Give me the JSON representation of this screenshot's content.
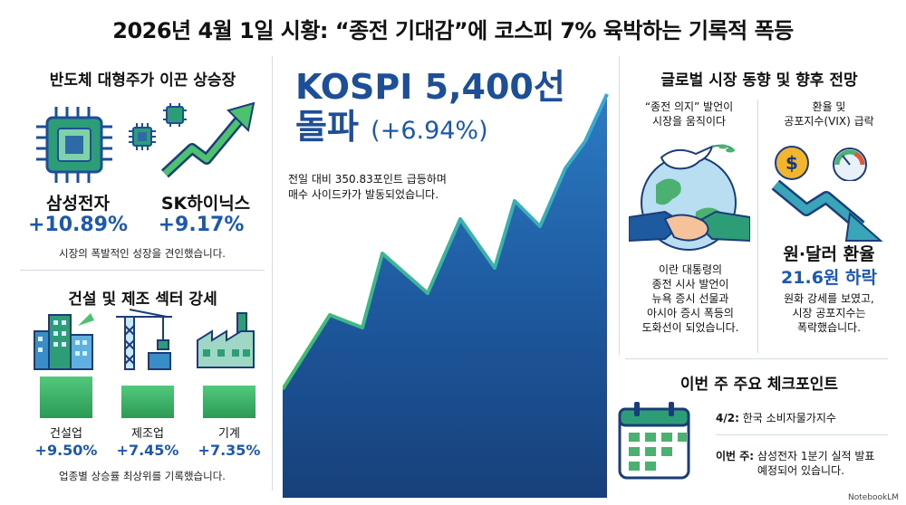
{
  "title": "2026년 4월 1일 시황: “종전 기대감”에 코스피 7% 육박하는 기록적 폭등",
  "semis": {
    "heading": "반도체 대형주가 이끈 상승장",
    "companies": [
      {
        "name": "삼성전자",
        "change": "+10.89%"
      },
      {
        "name": "SK하이닉스",
        "change": "+9.17%"
      }
    ],
    "caption": "시장의 폭발적인 성장을 견인했습니다."
  },
  "sectors": {
    "heading": "건설 및 제조 섹터 강세",
    "items": [
      {
        "name": "건설업",
        "change": "+9.50%",
        "value": 9.5
      },
      {
        "name": "제조업",
        "change": "+7.45%",
        "value": 7.45
      },
      {
        "name": "기계",
        "change": "+7.35%",
        "value": 7.35
      }
    ],
    "caption": "업종별 상승률 최상위를 기록했습니다."
  },
  "kospi": {
    "headline_line1": "KOSPI 5,400선",
    "headline_line2": "돌파",
    "change": "(+6.94%)",
    "desc_line1": "전일 대비 350.83포인트 급등하며",
    "desc_line2": "매수 사이드카가 발동되었습니다."
  },
  "global": {
    "heading": "글로벌 시장 동향 및 향후 전망",
    "peace_caption": [
      "“종전 의지” 발언이",
      "시장을 움직이다"
    ],
    "fx_caption": [
      "환율 및",
      "공포지수(VIX) 급락"
    ],
    "peace_body": [
      "이란 대통령의",
      "종전 시사 발언이",
      "뉴욕 증시 선물과",
      "아시아 증시 폭등의",
      "도화선이 되었습니다."
    ],
    "fx_title": "원·달러 환율",
    "fx_change": "21.6원 하락",
    "fx_body": [
      "원화 강세를 보였고,",
      "시장 공포지수는",
      "폭락했습니다."
    ],
    "dollar_symbol": "$"
  },
  "checkpoints": {
    "heading": "이번 주 주요 체크포인트",
    "items": [
      {
        "label": "4/2:",
        "text": "한국 소비자물가지수",
        "text2": ""
      },
      {
        "label": "이번 주:",
        "text": "삼성전자 1분기 실적 발표",
        "text2": "예정되어 있습니다."
      }
    ]
  },
  "watermark": "NotebookLM",
  "colors": {
    "accent_blue": "#1d58b0",
    "green": "#3cb46a",
    "chart_blue": "#1d4f99"
  }
}
